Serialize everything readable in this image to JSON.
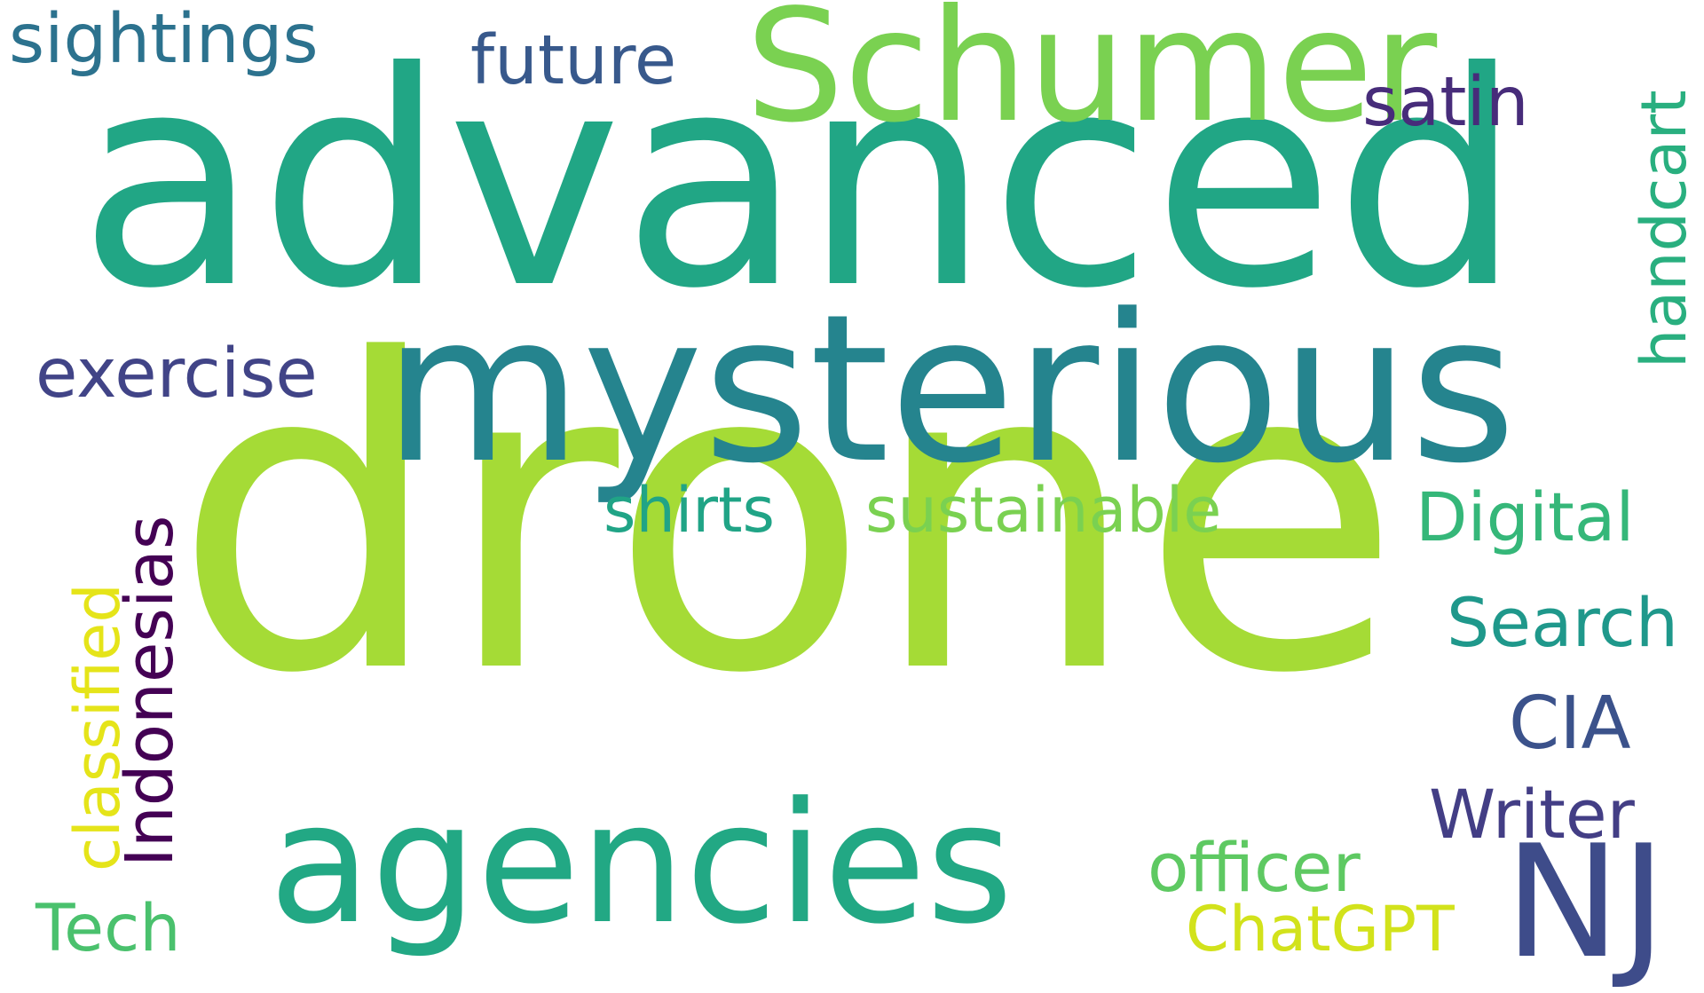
{
  "words": [
    {
      "text": "advanced",
      "color": "#21a685"
    },
    {
      "text": "drone",
      "color": "#a5db36"
    },
    {
      "text": "mysterious",
      "color": "#25848e"
    },
    {
      "text": "Schumer",
      "color": "#7ad151"
    },
    {
      "text": "agencies",
      "color": "#22a884"
    },
    {
      "text": "NJ",
      "color": "#3e4c8a"
    },
    {
      "text": "sightings",
      "color": "#2c728e"
    },
    {
      "text": "future",
      "color": "#38598c"
    },
    {
      "text": "satin",
      "color": "#472c7a"
    },
    {
      "text": "handcart",
      "color": "#29af7f"
    },
    {
      "text": "exercise",
      "color": "#414487"
    },
    {
      "text": "classified",
      "color": "#e5e419"
    },
    {
      "text": "Indonesias",
      "color": "#440154"
    },
    {
      "text": "shirts",
      "color": "#20a486"
    },
    {
      "text": "sustainable",
      "color": "#7ad151"
    },
    {
      "text": "Digital",
      "color": "#35b779"
    },
    {
      "text": "Search",
      "color": "#1f988b"
    },
    {
      "text": "CIA",
      "color": "#3b528b"
    },
    {
      "text": "Writer",
      "color": "#433e85"
    },
    {
      "text": "officer",
      "color": "#5ec962"
    },
    {
      "text": "ChatGPT",
      "color": "#d2e21b"
    },
    {
      "text": "Tech",
      "color": "#4ac16d"
    }
  ]
}
